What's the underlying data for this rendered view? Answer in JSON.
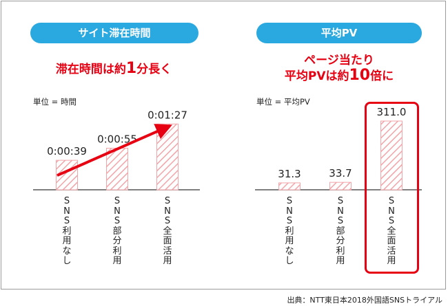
{
  "panels": [
    {
      "title": "サイト滞在時間",
      "headline_parts": [
        "滞在時間は約",
        "1",
        "分長く"
      ],
      "unit_label": "単位 = 時間",
      "categories": [
        "SNS利用なし",
        "SNS部分利用",
        "SNS全面活用"
      ],
      "value_labels": [
        "0:00:39",
        "0:00:55",
        "0:01:27"
      ]
    },
    {
      "title": "平均PV",
      "headline_line1": "ページ当たり",
      "headline_line2_parts": [
        "平均PVは約",
        "10",
        "倍に"
      ],
      "unit_label": "単位 = 平均PV",
      "categories": [
        "SNS利用なし",
        "SNS部分利用",
        "SNS全面活用"
      ],
      "value_labels": [
        "31.3",
        "33.7",
        "311.0"
      ]
    }
  ],
  "source": "出典：NTT東日本2018外国語SNSトライアル",
  "colors": {
    "accent_blue": "#2aa8e0",
    "highlight_red": "#e60012",
    "bar_hatch": "#f2a4a8"
  },
  "chart_data": [
    {
      "type": "bar",
      "title": "サイト滞在時間",
      "unit": "単位 = 時間",
      "categories": [
        "SNS利用なし",
        "SNS部分利用",
        "SNS全面活用"
      ],
      "values": [
        "0:00:39",
        "0:00:55",
        "0:01:27"
      ],
      "values_seconds": [
        39,
        55,
        87
      ]
    },
    {
      "type": "bar",
      "title": "平均PV",
      "unit": "単位 = 平均PV",
      "categories": [
        "SNS利用なし",
        "SNS部分利用",
        "SNS全面活用"
      ],
      "values": [
        31.3,
        33.7,
        311.0
      ]
    }
  ]
}
